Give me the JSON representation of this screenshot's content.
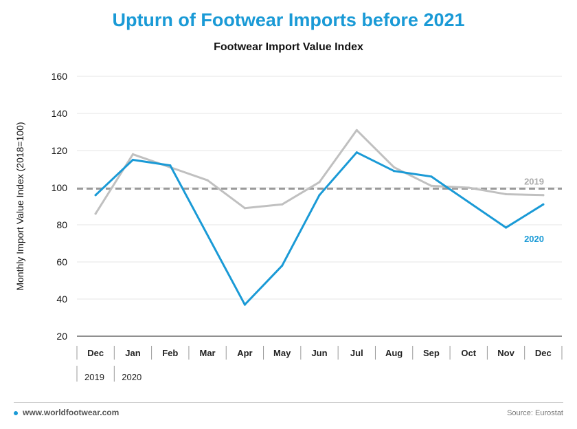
{
  "header": {
    "title": "Upturn of Footwear Imports before 2021",
    "subtitle": "Footwear Import Value Index"
  },
  "footer": {
    "site": "www.worldfootwear.com",
    "source": "Source: Eurostat"
  },
  "colors": {
    "title": "#1a9ad6",
    "series_2020": "#1a9ad6",
    "series_2019": "#c0c0c0",
    "reference_line": "#9a9a9a",
    "grid": "#e6e6e6"
  },
  "chart_data": {
    "type": "line",
    "title": "Footwear Import Value Index",
    "ylabel": "Monthly Import Value Index  (2018=100)",
    "xlabel": "",
    "ylim": [
      20,
      160
    ],
    "yticks": [
      20,
      40,
      60,
      80,
      100,
      120,
      140,
      160
    ],
    "grid": "horizontal",
    "categories": [
      "Dec",
      "Jan",
      "Feb",
      "Mar",
      "Apr",
      "May",
      "Jun",
      "Jul",
      "Aug",
      "Sep",
      "Oct",
      "Nov",
      "Dec"
    ],
    "year_groups": [
      {
        "label": "2019",
        "start": 0
      },
      {
        "label": "2020",
        "start": 1
      }
    ],
    "series": [
      {
        "name": "2019",
        "values": [
          86,
          118,
          111,
          104,
          89,
          91,
          103,
          131,
          111,
          101,
          100,
          96.5,
          96
        ]
      },
      {
        "name": "2020",
        "values": [
          96,
          115,
          112,
          null,
          37,
          58,
          96,
          119,
          109,
          106,
          null,
          78.5,
          91
        ]
      }
    ],
    "reference_line": {
      "label": "2019",
      "value": 99.5,
      "style": "dashed"
    }
  }
}
